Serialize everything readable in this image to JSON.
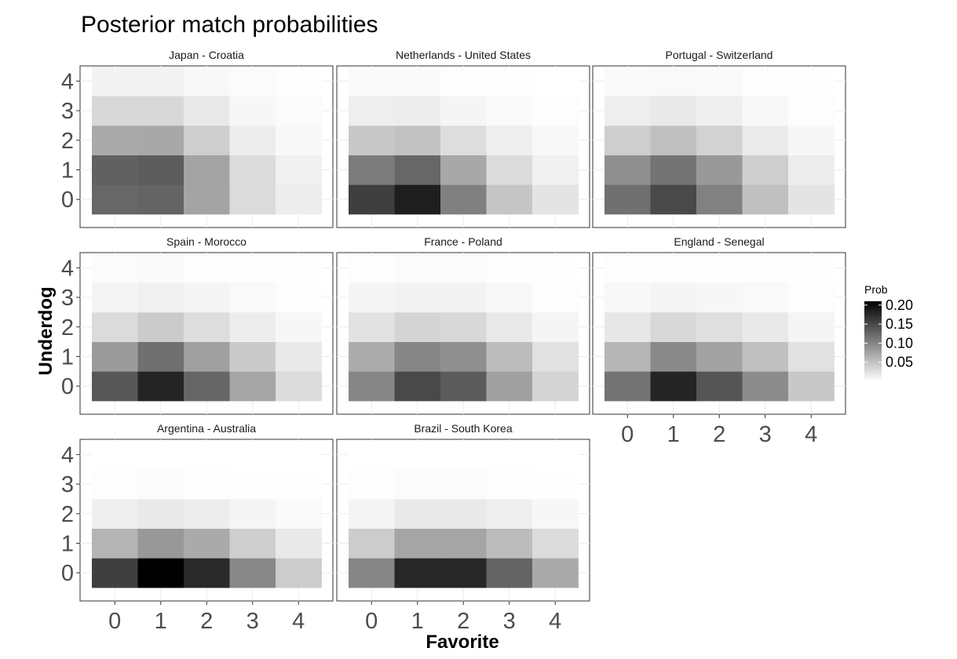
{
  "chart_data": {
    "type": "heatmap",
    "title": "Posterior match probabilities",
    "xlabel": "Favorite",
    "ylabel": "Underdog",
    "x": [
      0,
      1,
      2,
      3,
      4
    ],
    "y": [
      0,
      1,
      2,
      3,
      4
    ],
    "x_tick_labels": [
      "0",
      "1",
      "2",
      "3",
      "4"
    ],
    "y_tick_labels": [
      "0",
      "1",
      "2",
      "3",
      "4"
    ],
    "color_scale": {
      "low": "#ffffff",
      "high": "#000000",
      "limits": [
        0,
        0.21
      ],
      "legend_title": "Prob",
      "legend_position": "right",
      "legend_ticks": [
        "0.05",
        "0.10",
        "0.15",
        "0.20"
      ]
    },
    "panels": [
      {
        "name": "Japan - Croatia",
        "z": [
          [
            0.125,
            0.128,
            0.075,
            0.03,
            0.015
          ],
          [
            0.13,
            0.133,
            0.076,
            0.03,
            0.012
          ],
          [
            0.07,
            0.072,
            0.04,
            0.015,
            0.006
          ],
          [
            0.032,
            0.032,
            0.018,
            0.007,
            0.003
          ],
          [
            0.01,
            0.01,
            0.006,
            0.003,
            0.001
          ]
        ]
      },
      {
        "name": "Netherlands - United States",
        "z": [
          [
            0.158,
            0.185,
            0.105,
            0.048,
            0.022
          ],
          [
            0.108,
            0.125,
            0.072,
            0.03,
            0.012
          ],
          [
            0.045,
            0.05,
            0.028,
            0.013,
            0.006
          ],
          [
            0.014,
            0.015,
            0.008,
            0.004,
            0.002
          ],
          [
            0.004,
            0.004,
            0.002,
            0.001,
            0.0
          ]
        ]
      },
      {
        "name": "Portugal - Switzerland",
        "z": [
          [
            0.118,
            0.15,
            0.104,
            0.052,
            0.022
          ],
          [
            0.092,
            0.115,
            0.084,
            0.04,
            0.015
          ],
          [
            0.04,
            0.052,
            0.037,
            0.017,
            0.007
          ],
          [
            0.014,
            0.018,
            0.013,
            0.006,
            0.002
          ],
          [
            0.004,
            0.005,
            0.004,
            0.002,
            0.001
          ]
        ]
      },
      {
        "name": "Spain - Morocco",
        "z": [
          [
            0.138,
            0.18,
            0.126,
            0.074,
            0.03
          ],
          [
            0.082,
            0.118,
            0.078,
            0.044,
            0.018
          ],
          [
            0.03,
            0.043,
            0.028,
            0.015,
            0.007
          ],
          [
            0.009,
            0.012,
            0.008,
            0.005,
            0.002
          ],
          [
            0.003,
            0.004,
            0.002,
            0.001,
            0.001
          ]
        ]
      },
      {
        "name": "France - Poland",
        "z": [
          [
            0.1,
            0.15,
            0.135,
            0.078,
            0.035
          ],
          [
            0.068,
            0.1,
            0.092,
            0.055,
            0.025
          ],
          [
            0.024,
            0.035,
            0.032,
            0.018,
            0.008
          ],
          [
            0.008,
            0.011,
            0.01,
            0.006,
            0.002
          ],
          [
            0.002,
            0.003,
            0.003,
            0.001,
            0.001
          ]
        ]
      },
      {
        "name": "England - Senegal",
        "z": [
          [
            0.115,
            0.18,
            0.14,
            0.095,
            0.045
          ],
          [
            0.06,
            0.096,
            0.077,
            0.052,
            0.025
          ],
          [
            0.02,
            0.032,
            0.026,
            0.018,
            0.008
          ],
          [
            0.006,
            0.009,
            0.007,
            0.005,
            0.002
          ],
          [
            0.002,
            0.002,
            0.002,
            0.001,
            0.001
          ]
        ]
      },
      {
        "name": "Argentina - Australia",
        "z": [
          [
            0.158,
            0.21,
            0.176,
            0.098,
            0.042
          ],
          [
            0.062,
            0.085,
            0.07,
            0.04,
            0.018
          ],
          [
            0.013,
            0.018,
            0.015,
            0.008,
            0.004
          ],
          [
            0.002,
            0.003,
            0.002,
            0.001,
            0.001
          ],
          [
            0.0,
            0.0,
            0.0,
            0.0,
            0.0
          ]
        ]
      },
      {
        "name": "Brazil - South Korea",
        "z": [
          [
            0.1,
            0.178,
            0.178,
            0.128,
            0.07
          ],
          [
            0.042,
            0.074,
            0.074,
            0.055,
            0.03
          ],
          [
            0.009,
            0.018,
            0.018,
            0.013,
            0.007
          ],
          [
            0.002,
            0.003,
            0.003,
            0.002,
            0.001
          ],
          [
            0.0,
            0.0,
            0.0,
            0.0,
            0.0
          ]
        ]
      }
    ]
  }
}
